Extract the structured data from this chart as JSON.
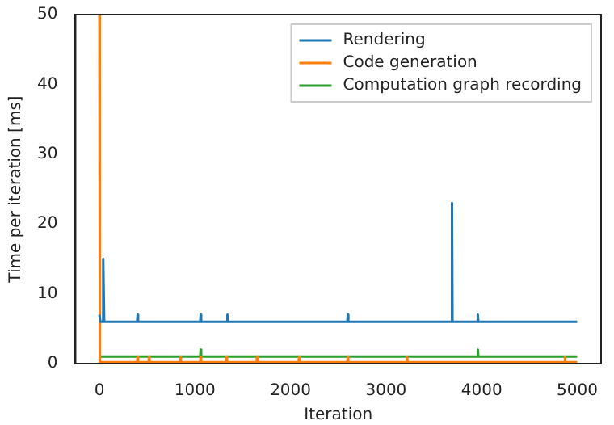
{
  "chart_data": {
    "type": "line",
    "xlabel": "Iteration",
    "ylabel": "Time per iteration [ms]",
    "xlim": [
      -250,
      5250
    ],
    "xticks": [
      0,
      1000,
      2000,
      3000,
      4000,
      5000
    ],
    "ylim": [
      0,
      50
    ],
    "yticks": [
      0,
      10,
      20,
      30,
      40,
      50
    ],
    "grid": false,
    "legend": "top right",
    "series": [
      {
        "name": "Rendering",
        "color": "#1f77b4",
        "x": [
          0,
          5,
          10,
          30,
          40,
          50,
          395,
          400,
          405,
          1055,
          1060,
          1065,
          1335,
          1340,
          1345,
          2595,
          2600,
          2605,
          3685,
          3690,
          3695,
          3955,
          3960,
          3965,
          5000
        ],
        "values": [
          7,
          7,
          6,
          6,
          15,
          6,
          6,
          7,
          6,
          6,
          7,
          6,
          6,
          7,
          6,
          6,
          7,
          6,
          6,
          23,
          6,
          6,
          7,
          6,
          6
        ]
      },
      {
        "name": "Code generation",
        "color": "#ff7f0e",
        "x": [
          0,
          5,
          10,
          395,
          400,
          405,
          515,
          520,
          525,
          845,
          850,
          855,
          1055,
          1060,
          1065,
          1325,
          1330,
          1335,
          1645,
          1650,
          1655,
          2085,
          2090,
          2095,
          2595,
          2600,
          2605,
          3215,
          3220,
          3225,
          4865,
          4870,
          4875,
          5000
        ],
        "values": [
          50,
          0.2,
          0.2,
          0.2,
          1,
          0.2,
          0.2,
          1,
          0.2,
          0.2,
          1,
          0.2,
          0.2,
          1,
          0.2,
          0.2,
          1,
          0.2,
          0.2,
          1,
          0.2,
          0.2,
          1,
          0.2,
          0.2,
          1,
          0.2,
          0.2,
          1,
          0.2,
          0.2,
          1,
          0.2,
          0.2
        ]
      },
      {
        "name": "Computation graph recording",
        "color": "#2ca02c",
        "x": [
          0,
          1055,
          1060,
          1065,
          3955,
          3960,
          3965,
          5000
        ],
        "values": [
          1,
          1,
          2,
          1,
          1,
          2,
          1,
          1
        ]
      }
    ]
  }
}
